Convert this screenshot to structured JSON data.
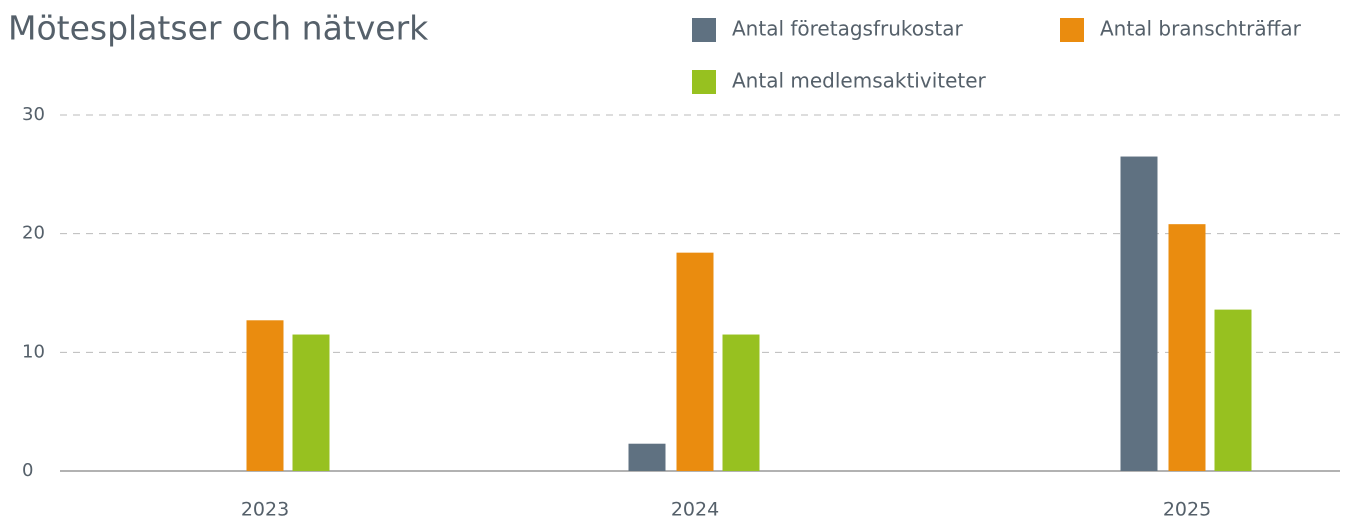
{
  "chart_data": {
    "type": "bar",
    "title": "Mötesplatser och nätverk",
    "categories": [
      "2023",
      "2024",
      "2025"
    ],
    "series": [
      {
        "name": "Antal företagsfrukostar",
        "color": "#5f7181",
        "values": [
          0,
          2.3,
          26.5
        ]
      },
      {
        "name": "Antal branschträffar",
        "color": "#ea8c0f",
        "values": [
          12.7,
          18.4,
          20.8
        ]
      },
      {
        "name": "Antal medlemsaktiviteter",
        "color": "#97c120",
        "values": [
          11.5,
          11.5,
          13.6
        ]
      }
    ],
    "ylim": [
      0,
      30
    ],
    "yticks": [
      0,
      10,
      20,
      30
    ],
    "grid": true
  }
}
